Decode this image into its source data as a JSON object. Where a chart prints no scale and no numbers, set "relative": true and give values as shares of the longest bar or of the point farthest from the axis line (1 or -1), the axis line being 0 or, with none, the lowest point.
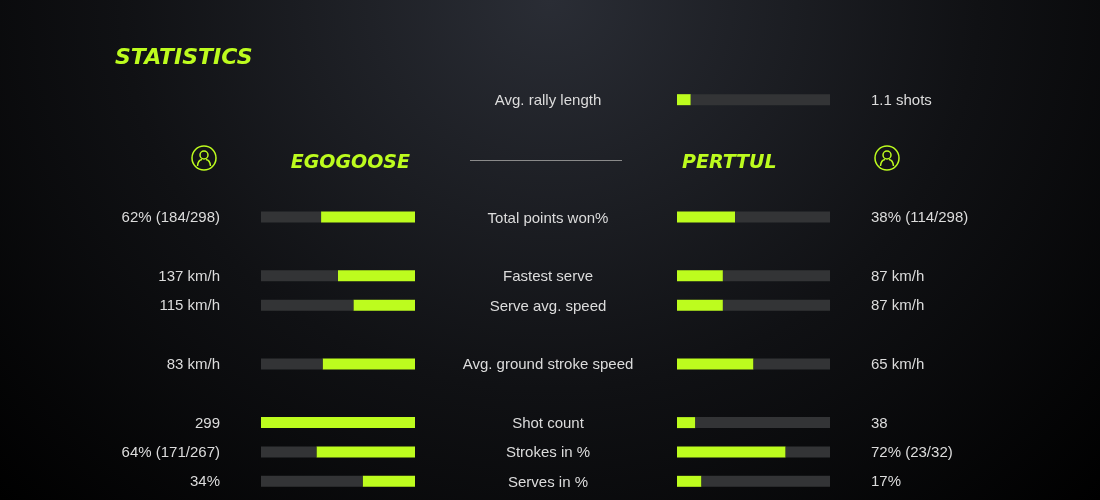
{
  "chart_data": [
    {
      "type": "bar",
      "title": "STATISTICS",
      "orientation": "horizontal",
      "relative": true,
      "stacked": true,
      "legend": "top",
      "tick_labels": "y",
      "categories": [
        "Avg. rally length",
        null,
        null,
        null,
        "Total points won%",
        null,
        "Fastest serve",
        "Serve avg. speed",
        null,
        "Avg. ground stroke speed",
        null,
        "Shot count",
        "Strokes in %",
        "Serves in %"
      ],
      "series": [
        {
          "name": "EGOGOOSE",
          "color": "#bdfc1e",
          "values": [
            null,
            null,
            null,
            null,
            -0.61,
            null,
            -0.5,
            -0.4,
            null,
            -0.6,
            null,
            -1,
            -0.64,
            -0.34
          ]
        },
        {
          "color": "#333436",
          "values": [
            null,
            null,
            null,
            null,
            -0.39,
            null,
            -0.5,
            -0.6,
            null,
            -0.4,
            null,
            null,
            -0.36,
            -0.66
          ]
        }
      ],
      "annotations": [
        "62% (184/298)",
        "137 km/h",
        "115 km/h",
        "83 km/h",
        "299",
        "64% (171/267)",
        "34%"
      ]
    },
    {
      "type": "bar",
      "orientation": "horizontal",
      "relative": true,
      "stacked": true,
      "legend": "top",
      "tick_labels": false,
      "categories": [
        null,
        null,
        null,
        null,
        null,
        null,
        null,
        null,
        null,
        null,
        null,
        null,
        null,
        null
      ],
      "series": [
        {
          "name": "PERTTUL",
          "color": "#bdfc1e",
          "values": [
            0.09,
            null,
            null,
            null,
            0.38,
            null,
            0.3,
            0.3,
            null,
            0.5,
            null,
            0.12,
            0.71,
            0.16
          ]
        },
        {
          "color": "#333436",
          "values": [
            0.91,
            null,
            null,
            null,
            0.62,
            null,
            0.7,
            0.7,
            null,
            0.5,
            null,
            0.88,
            0.29,
            0.84
          ]
        }
      ],
      "annotations": [
        "1.1 shots",
        "38% (114/298)",
        "87 km/h",
        "87 km/h",
        "65 km/h",
        "38",
        "72% (23/32)",
        "17%"
      ]
    }
  ]
}
